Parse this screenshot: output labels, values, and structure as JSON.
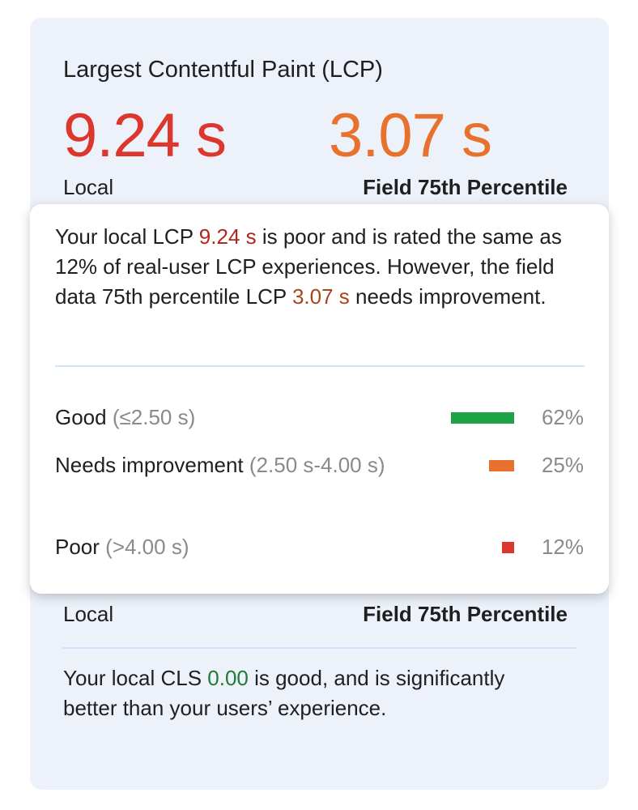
{
  "lcp": {
    "title": "Largest Contentful Paint (LCP)",
    "local_value": "9.24 s",
    "field_value": "3.07 s",
    "local_label": "Local",
    "field_label": "Field 75th Percentile"
  },
  "tooltip": {
    "text_1": "Your local LCP ",
    "local_value": "9.24 s",
    "text_2": " is poor and is rated the same as 12% of real-user LCP experiences. However, the field data 75th percentile LCP ",
    "field_value": "3.07 s",
    "text_3": " needs improvement.",
    "rows": [
      {
        "name": "Good",
        "range": "(≤2.50 s)",
        "percent": 62,
        "percent_label": "62%",
        "color": "#1ea446"
      },
      {
        "name": "Needs improvement",
        "range": "(2.50 s-4.00 s)",
        "percent": 25,
        "percent_label": "25%",
        "color": "#e8712e"
      },
      {
        "name": "Poor",
        "range": "(>4.00 s)",
        "percent": 12,
        "percent_label": "12%",
        "color": "#dc362e"
      }
    ]
  },
  "cls": {
    "local_label": "Local",
    "field_label": "Field 75th Percentile",
    "text_1": "Your local CLS ",
    "value": "0.00",
    "text_2": " is good, and is significantly better than your users’ experience."
  }
}
